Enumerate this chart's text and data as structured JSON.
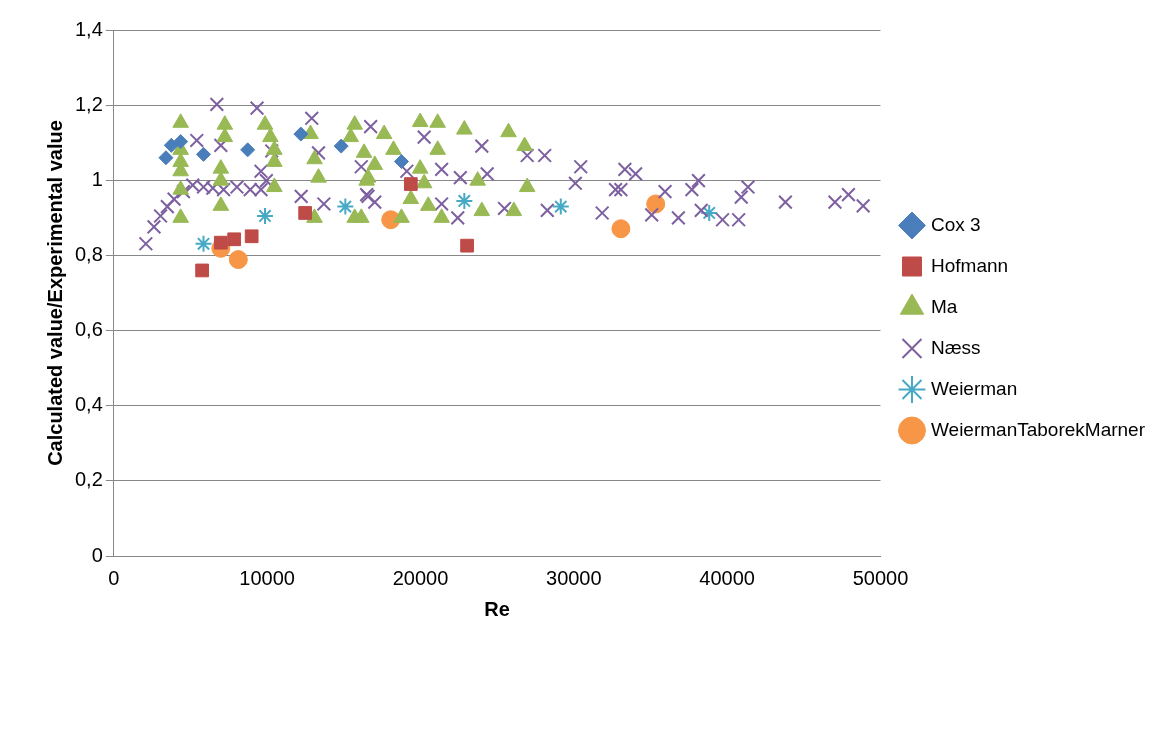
{
  "chart_data": {
    "type": "scatter",
    "xlabel": "Re",
    "ylabel": "Calculated value/Experimental value",
    "xlim": [
      0,
      50000
    ],
    "xticks": [
      0,
      10000,
      20000,
      30000,
      40000,
      50000
    ],
    "ylim": [
      0,
      1.4
    ],
    "yticks": [
      0,
      {
        "value": 0.2,
        "label": "0,2"
      },
      {
        "value": 0.4,
        "label": "0,4"
      },
      {
        "value": 0.6,
        "label": "0,6"
      },
      {
        "value": 0.8,
        "label": "0,8"
      },
      1,
      {
        "value": 1.2,
        "label": "1,2"
      },
      {
        "value": 1.4,
        "label": "1,4"
      }
    ],
    "grid": "y",
    "legend": "right",
    "series": [
      {
        "name": "Cox 3",
        "color": "#4a7ebb",
        "marker": "diamond",
        "x": [
          3750,
          4360,
          5850,
          8730,
          12200,
          14830,
          18760,
          3400
        ],
        "values": [
          1.093,
          1.103,
          1.069,
          1.081,
          1.123,
          1.091,
          1.05,
          1.06
        ]
      },
      {
        "name": "Hofmann",
        "color": "#be4b48",
        "marker": "square",
        "x": [
          5760,
          6980,
          7850,
          8990,
          12480,
          19370,
          23040
        ],
        "values": [
          0.76,
          0.834,
          0.843,
          0.851,
          0.913,
          0.99,
          0.826
        ]
      },
      {
        "name": "Ma",
        "color": "#98b954",
        "marker": "triangle",
        "x": [
          4360,
          4360,
          4360,
          4360,
          4360,
          4360,
          7240,
          7240,
          6980,
          6980,
          6980,
          9860,
          10210,
          10470,
          10470,
          10470,
          12830,
          13090,
          13350,
          15710,
          15450,
          16320,
          16580,
          13090,
          15710,
          19980,
          21120,
          22860,
          25740,
          26790,
          17630,
          18240,
          21120,
          17020,
          19980,
          16490,
          20240,
          23730,
          26960,
          19370,
          20510,
          16140,
          21380,
          24000,
          26090,
          18760
        ],
        "values": [
          1.153,
          1.081,
          1.049,
          1.024,
          0.975,
          0.9,
          1.148,
          1.115,
          1.031,
          0.999,
          0.932,
          1.148,
          1.115,
          1.081,
          1.049,
          0.982,
          1.123,
          1.056,
          1.007,
          1.148,
          1.115,
          1.073,
          1.007,
          0.9,
          0.9,
          1.155,
          1.153,
          1.135,
          1.128,
          1.091,
          1.123,
          1.081,
          1.081,
          1.041,
          1.031,
          0.999,
          0.992,
          0.999,
          0.982,
          0.95,
          0.932,
          0.9,
          0.9,
          0.918,
          0.918,
          0.9
        ]
      },
      {
        "name": "Næss",
        "color": "#7d60a0",
        "marker": "cross",
        "x": [
          2090,
          2620,
          3050,
          3490,
          3930,
          4540,
          5150,
          5850,
          6460,
          7160,
          8030,
          8900,
          9600,
          9950,
          6720,
          9340,
          5410,
          6980,
          10300,
          12910,
          13350,
          16750,
          16140,
          9600,
          12220,
          13700,
          16580,
          20240,
          24000,
          26960,
          28100,
          30450,
          33330,
          19110,
          21380,
          22600,
          24350,
          30100,
          32720,
          16490,
          17020,
          21380,
          22430,
          25480,
          28270,
          34030,
          38130,
          41360,
          33070,
          35950,
          40920,
          43800,
          47030,
          47910,
          48870,
          31850,
          35080,
          36820,
          38310,
          39700,
          40750,
          37700
        ],
        "values": [
          0.831,
          0.876,
          0.905,
          0.93,
          0.95,
          0.97,
          0.987,
          0.982,
          0.979,
          0.975,
          0.982,
          0.975,
          0.975,
          0.999,
          1.202,
          1.192,
          1.106,
          1.093,
          1.078,
          1.165,
          1.073,
          1.143,
          1.036,
          1.024,
          0.957,
          0.937,
          0.957,
          1.115,
          1.091,
          1.066,
          1.066,
          1.036,
          1.029,
          1.024,
          1.029,
          1.007,
          1.017,
          0.992,
          0.975,
          0.962,
          0.942,
          0.937,
          0.9,
          0.925,
          0.92,
          1.017,
          0.999,
          0.982,
          0.975,
          0.97,
          0.955,
          0.942,
          0.942,
          0.962,
          0.932,
          0.913,
          0.908,
          0.9,
          0.92,
          0.895,
          0.895,
          0.975
        ]
      },
      {
        "name": "Weierman",
        "color": "#46aac5",
        "x": [
          5850,
          9860,
          15100,
          22860,
          29150,
          38830
        ],
        "values": [
          0.831,
          0.905,
          0.93,
          0.945,
          0.93,
          0.913
        ]
      },
      {
        "name": "WeiermanTaborekMarner",
        "color": "#f79646",
        "marker": "circle",
        "x": [
          6980,
          8120,
          18060,
          33070,
          35340
        ],
        "values": [
          0.819,
          0.789,
          0.895,
          0.871,
          0.937
        ]
      }
    ]
  }
}
